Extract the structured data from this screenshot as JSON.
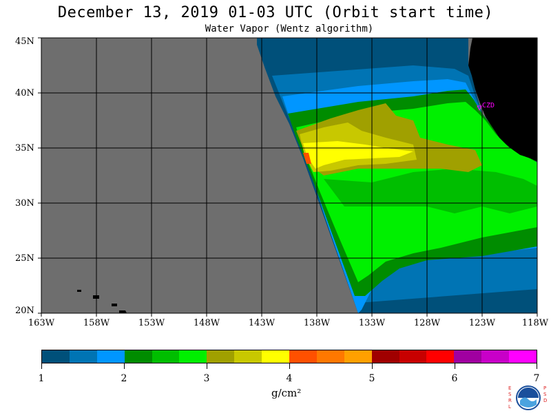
{
  "title": "December 13, 2019  01-03 UTC  (Orbit start time)",
  "subtitle": "Water Vapor (Wentz algorithm)",
  "latitude_labels": [
    "45N",
    "40N",
    "35N",
    "30N",
    "25N",
    "20N"
  ],
  "longitude_labels": [
    "163W",
    "158W",
    "153W",
    "148W",
    "143W",
    "138W",
    "133W",
    "128W",
    "123W",
    "118W"
  ],
  "station_label": "CZD",
  "colorbar": {
    "colors": [
      "#00507a",
      "#0074b4",
      "#0096ff",
      "#008c00",
      "#00be00",
      "#00f000",
      "#a0a000",
      "#c8c800",
      "#ffff00",
      "#ff5000",
      "#ff7800",
      "#ffa000",
      "#a00000",
      "#c80000",
      "#ff0000",
      "#a000a0",
      "#c800c8",
      "#ff00ff"
    ],
    "tick_labels": [
      "1",
      "2",
      "3",
      "4",
      "5",
      "6",
      "7"
    ],
    "units": "g/cm²"
  },
  "colors": {
    "no_data": "#6e6e6e",
    "land": "#000000",
    "grid": "#000000"
  },
  "logo": {
    "left_letters": "E S R L",
    "right_letters": "P S D",
    "center": "NOAA"
  }
}
